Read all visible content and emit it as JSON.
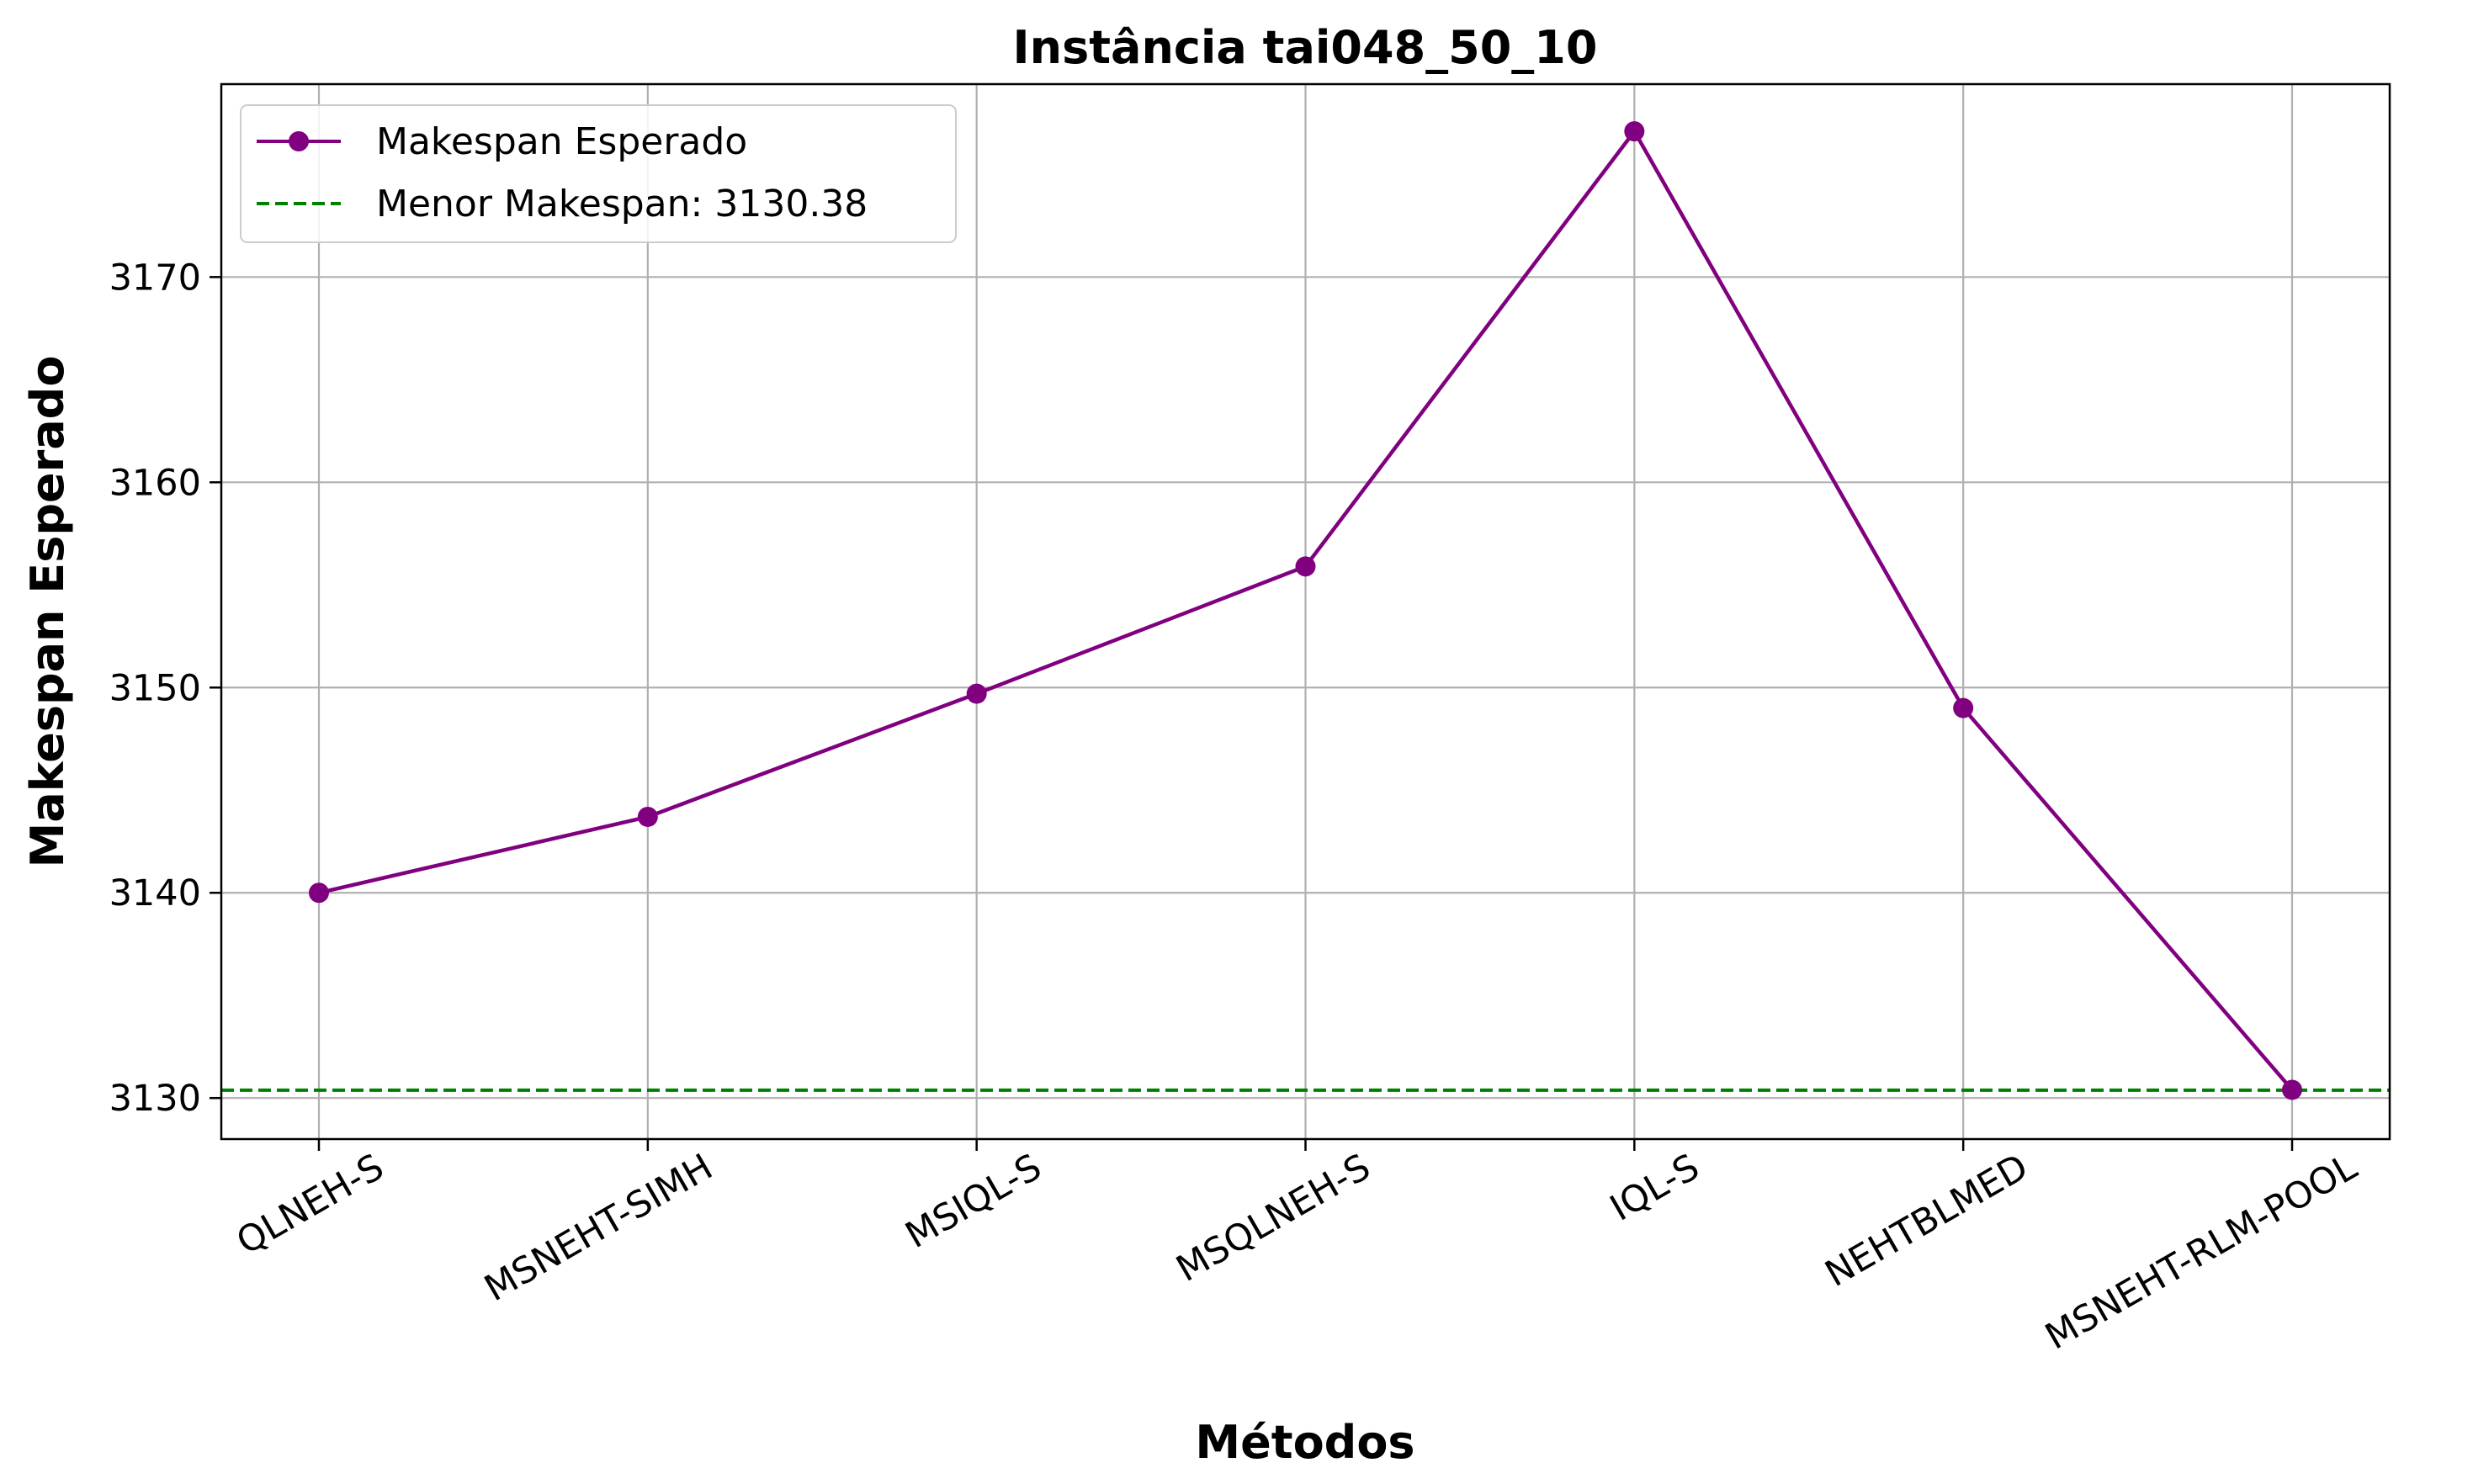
{
  "chart_data": {
    "type": "line",
    "title": "Instância tai048_50_10",
    "xlabel": "Métodos",
    "ylabel": "Makespan Esperado",
    "categories": [
      "QLNEH-S",
      "MSNEHT-SIMH",
      "MSIQL-S",
      "MSQLNEH-S",
      "IQL-S",
      "NEHTBLMED",
      "MSNEHT-RLM-POOL"
    ],
    "series": [
      {
        "name": "Makespan Esperado",
        "values": [
          3140.0,
          3143.7,
          3149.7,
          3155.9,
          3177.1,
          3149.0,
          3130.4
        ],
        "color": "#800080",
        "marker": "circle"
      }
    ],
    "reference_line": {
      "label": "Menor Makespan: 3130.38",
      "value": 3130.38,
      "color": "#008000",
      "style": "dashed"
    },
    "yticks": [
      3130,
      3140,
      3150,
      3160,
      3170
    ],
    "ylim": [
      3128.0,
      3179.4
    ],
    "grid": true,
    "legend_position": "upper-left",
    "colors": {
      "axis": "#000000",
      "grid": "#b0b0b0",
      "background": "#ffffff"
    }
  }
}
